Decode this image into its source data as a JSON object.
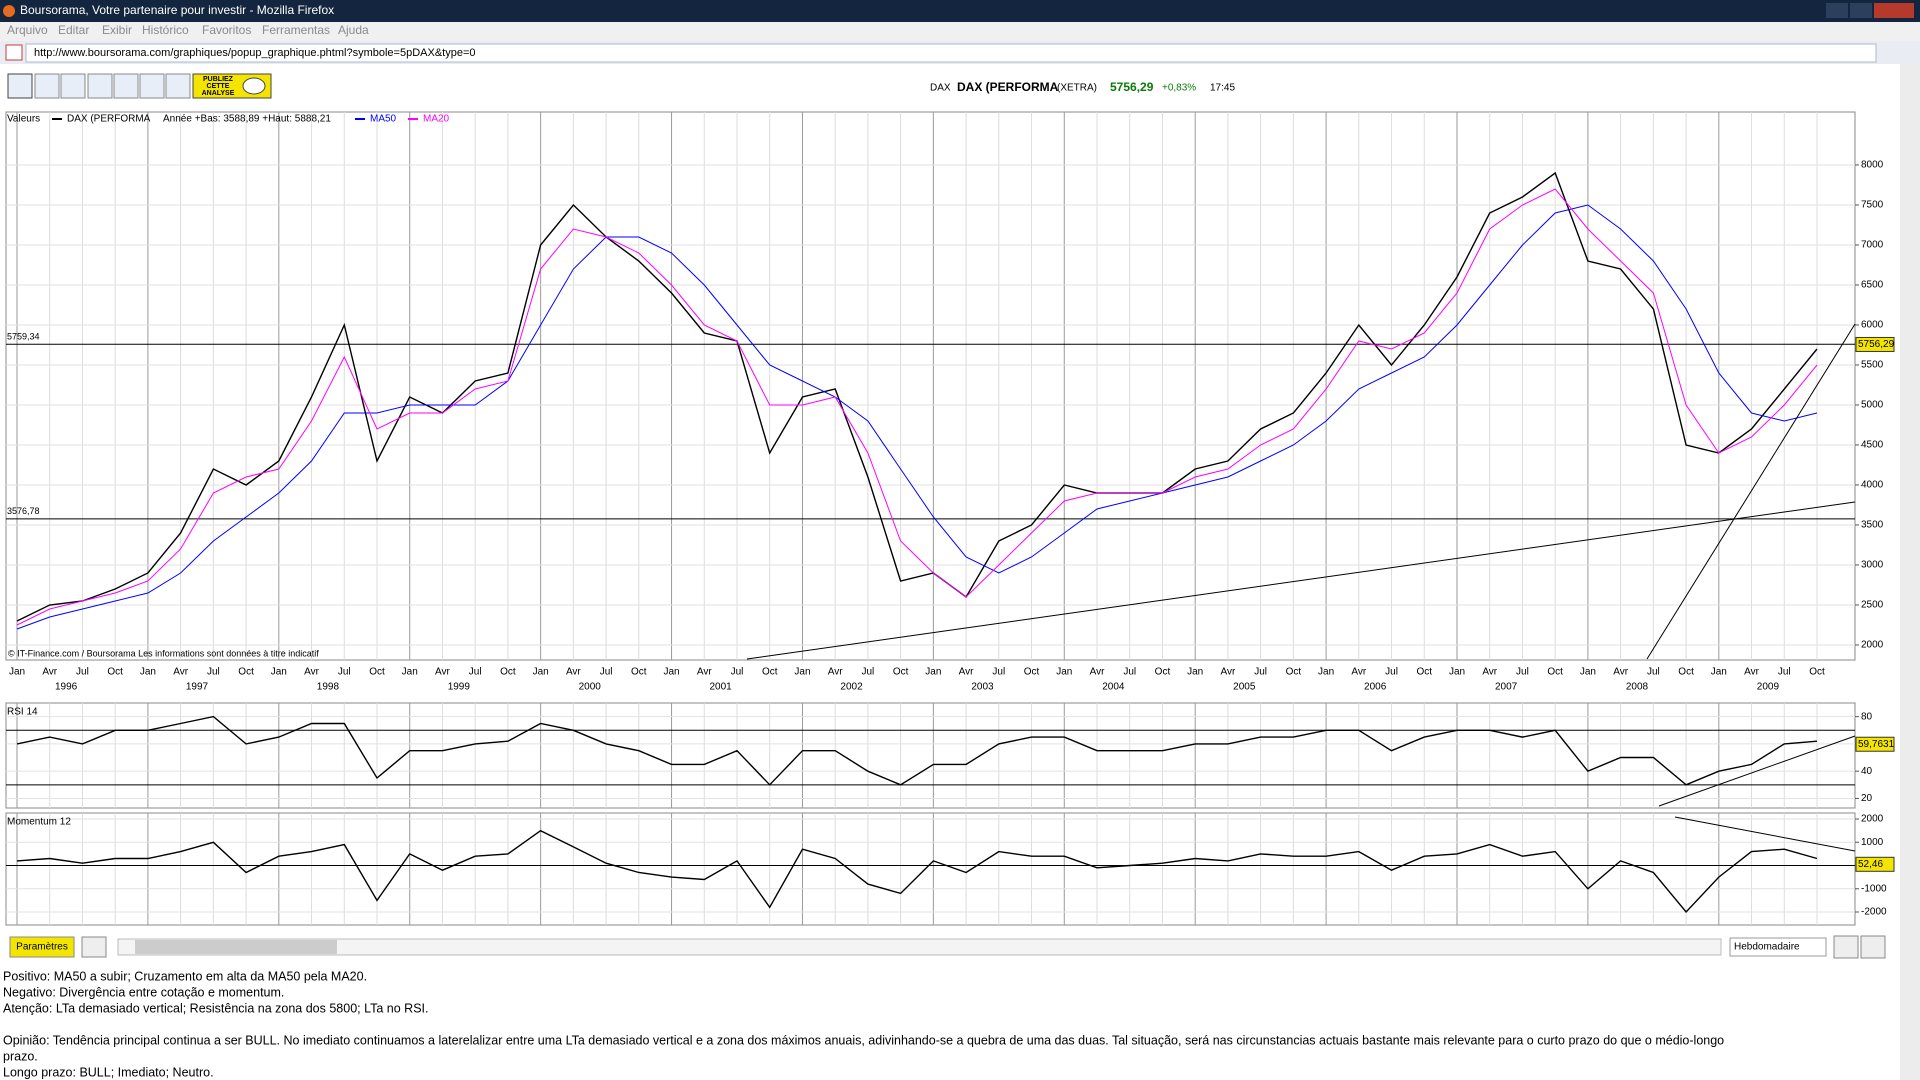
{
  "window": {
    "title": "Boursorama, Votre partenaire pour investir - Mozilla Firefox"
  },
  "menu": [
    "Arquivo",
    "Editar",
    "Exibir",
    "Histórico",
    "Favoritos",
    "Ferramentas",
    "Ajuda"
  ],
  "address": {
    "url": "http://www.boursorama.com/graphiques/popup_graphique.phtml?symbole=5pDAX&type=0"
  },
  "toolbar": {
    "publish": [
      "PUBLIEZ",
      "CETTE",
      "ANALYSE"
    ]
  },
  "header": {
    "symbol": "DAX",
    "name": "DAX (PERFORMA",
    "market": "(XETRA)",
    "price": "5756,29",
    "change": "+0,83%",
    "time": "17:45"
  },
  "chart_data": [
    {
      "type": "line",
      "legend_label": "Valeurs",
      "range_note": "Année +Bas: 3588,89 +Haut: 5888,21",
      "source": "© IT-Finance.com / Boursorama Les informations sont données à titre indicatif",
      "categories": [
        "Jan",
        "Avr",
        "Jul",
        "Oct",
        "Jan",
        "Avr",
        "Jul",
        "Oct",
        "Jan",
        "Avr",
        "Jul",
        "Oct",
        "Jan",
        "Avr",
        "Jul",
        "Oct",
        "Jan",
        "Avr",
        "Jul",
        "Oct",
        "Jan",
        "Avr",
        "Jul",
        "Oct",
        "Jan",
        "Avr",
        "Jul",
        "Oct",
        "Jan",
        "Avr",
        "Jul",
        "Oct",
        "Jan",
        "Avr",
        "Jul",
        "Oct",
        "Jan",
        "Avr",
        "Jul",
        "Oct",
        "Jan",
        "Avr",
        "Jul",
        "Oct",
        "Jan",
        "Avr",
        "Jul",
        "Oct",
        "Jan",
        "Avr",
        "Jul",
        "Oct",
        "Jan",
        "Avr",
        "Jul",
        "Oct"
      ],
      "years": [
        "1996",
        "1997",
        "1998",
        "1999",
        "2000",
        "2001",
        "2002",
        "2003",
        "2004",
        "2005",
        "2006",
        "2007",
        "2008",
        "2009"
      ],
      "ylim": [
        1812,
        8662
      ],
      "yticks": [
        2000,
        2500,
        3000,
        3500,
        4000,
        4500,
        5000,
        5500,
        6000,
        6500,
        7000,
        7500,
        8000
      ],
      "hlines": [
        {
          "value": 5759.34,
          "label": "5759,34"
        },
        {
          "value": 3576.78,
          "label": "3576,78"
        }
      ],
      "last": {
        "value": 5756.29,
        "label": "5756,29"
      },
      "series": [
        {
          "name": "DAX (PERFORMA",
          "color": "#000000",
          "values": [
            2300,
            2500,
            2550,
            2700,
            2900,
            3400,
            4200,
            4000,
            4300,
            5100,
            6000,
            4300,
            5100,
            4900,
            5300,
            5400,
            7000,
            7500,
            7100,
            6800,
            6400,
            5900,
            5800,
            4400,
            5100,
            5200,
            4100,
            2800,
            2900,
            2600,
            3300,
            3500,
            4000,
            3900,
            3900,
            3900,
            4200,
            4300,
            4700,
            4900,
            5400,
            6000,
            5500,
            6000,
            6600,
            7400,
            7600,
            7900,
            6800,
            6700,
            6200,
            4500,
            4400,
            4700,
            5200,
            5700
          ]
        },
        {
          "name": "MA50",
          "color": "#0000ff",
          "values": [
            2200,
            2350,
            2450,
            2550,
            2650,
            2900,
            3300,
            3600,
            3900,
            4300,
            4900,
            4900,
            5000,
            5000,
            5000,
            5300,
            6000,
            6700,
            7100,
            7100,
            6900,
            6500,
            6000,
            5500,
            5300,
            5100,
            4800,
            4200,
            3600,
            3100,
            2900,
            3100,
            3400,
            3700,
            3800,
            3900,
            4000,
            4100,
            4300,
            4500,
            4800,
            5200,
            5400,
            5600,
            6000,
            6500,
            7000,
            7400,
            7500,
            7200,
            6800,
            6200,
            5400,
            4900,
            4800,
            4900
          ]
        },
        {
          "name": "MA20",
          "color": "#ff00ff",
          "values": [
            2250,
            2450,
            2550,
            2650,
            2800,
            3200,
            3900,
            4100,
            4200,
            4800,
            5600,
            4700,
            4900,
            4900,
            5200,
            5300,
            6700,
            7200,
            7100,
            6900,
            6500,
            6000,
            5800,
            5000,
            5000,
            5100,
            4400,
            3300,
            2900,
            2600,
            3000,
            3400,
            3800,
            3900,
            3900,
            3900,
            4100,
            4200,
            4500,
            4700,
            5200,
            5800,
            5700,
            5900,
            6400,
            7200,
            7500,
            7700,
            7200,
            6800,
            6400,
            5000,
            4400,
            4600,
            5000,
            5500
          ]
        }
      ]
    },
    {
      "type": "line",
      "title": "RSI 14",
      "ylim": [
        13,
        90
      ],
      "yticks": [
        20,
        40,
        60,
        80
      ],
      "hlines": [
        70,
        30
      ],
      "last": {
        "value": 59.7631,
        "label": "59,7631"
      },
      "series": [
        {
          "color": "#000000",
          "values": [
            60,
            65,
            60,
            70,
            70,
            75,
            80,
            60,
            65,
            75,
            75,
            35,
            55,
            55,
            60,
            62,
            75,
            70,
            60,
            55,
            45,
            45,
            55,
            30,
            55,
            55,
            40,
            30,
            45,
            45,
            60,
            65,
            65,
            55,
            55,
            55,
            60,
            60,
            65,
            65,
            70,
            70,
            55,
            65,
            70,
            70,
            65,
            70,
            40,
            50,
            50,
            30,
            40,
            45,
            60,
            62
          ]
        }
      ]
    },
    {
      "type": "line",
      "title": "Momentum 12",
      "ylim": [
        -2560,
        2260
      ],
      "yticks": [
        -2000,
        -1000,
        1000,
        2000
      ],
      "hlines": [
        0
      ],
      "last": {
        "value": 52.46,
        "label": "52,46"
      },
      "series": [
        {
          "color": "#000000",
          "values": [
            200,
            300,
            100,
            300,
            300,
            600,
            1000,
            -300,
            400,
            600,
            900,
            -1500,
            500,
            -200,
            400,
            500,
            1500,
            800,
            100,
            -300,
            -500,
            -600,
            200,
            -1800,
            700,
            300,
            -800,
            -1200,
            200,
            -300,
            600,
            400,
            400,
            -100,
            0,
            100,
            300,
            200,
            500,
            400,
            400,
            600,
            -200,
            400,
            500,
            900,
            400,
            600,
            -1000,
            200,
            -300,
            -2000,
            -500,
            600,
            700,
            300
          ]
        }
      ]
    }
  ],
  "footer": {
    "params": "Paramètres",
    "period": "Hebdomadaire"
  },
  "commentary": [
    "Positivo: MA50 a subir; Cruzamento em alta da MA50 pela MA20.",
    "Negativo: Divergência entre cotação e momentum.",
    "Atenção: LTa demasiado vertical; Resistência na zona dos 5800; LTa no RSI.",
    "",
    "Opinião: Tendência principal continua a ser BULL. No imediato continuamos a laterelalizar entre uma LTa demasiado vertical e a zona dos máximos anuais, adivinhando-se a quebra de uma das duas. Tal situação, será nas circunstancias actuais bastante mais relevante para o curto prazo do que o médio-longo",
    "prazo.",
    "Longo prazo: BULL;  Imediato; Neutro."
  ]
}
